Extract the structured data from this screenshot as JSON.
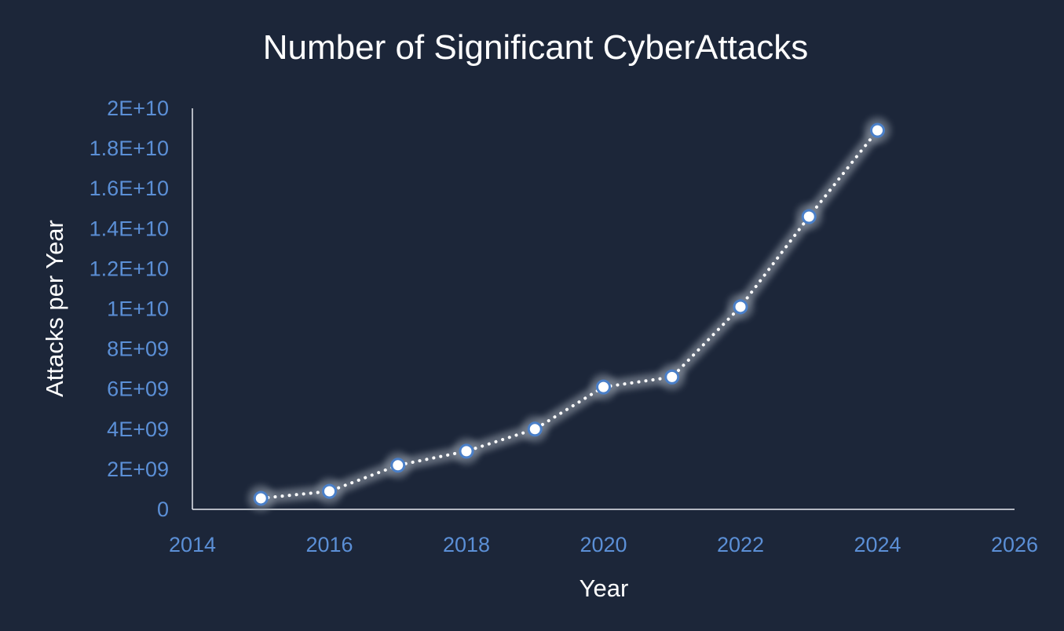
{
  "chart_data": {
    "type": "scatter",
    "title": "Number of Significant CyberAttacks",
    "xlabel": "Year",
    "ylabel": "Attacks per Year",
    "xlim": [
      2014,
      2026
    ],
    "ylim": [
      0,
      20000000000
    ],
    "x_ticks": [
      2014,
      2016,
      2018,
      2020,
      2022,
      2024,
      2026
    ],
    "x_tick_labels": [
      "2014",
      "2016",
      "2018",
      "2020",
      "2022",
      "2024",
      "2026"
    ],
    "y_ticks": [
      0,
      2000000000,
      4000000000,
      6000000000,
      8000000000,
      10000000000,
      12000000000,
      14000000000,
      16000000000,
      18000000000,
      20000000000
    ],
    "y_tick_labels": [
      "0",
      "2E+09",
      "4E+09",
      "6E+09",
      "8E+09",
      "1E+10",
      "1.2E+10",
      "1.4E+10",
      "1.6E+10",
      "1.8E+10",
      "2E+10"
    ],
    "grid": false,
    "series": [
      {
        "name": "Attacks per Year",
        "style": "dotted line with markers",
        "x": [
          2015,
          2016,
          2017,
          2018,
          2019,
          2020,
          2021,
          2022,
          2023,
          2024
        ],
        "y": [
          550000000,
          900000000,
          2200000000,
          2900000000,
          4000000000,
          6100000000,
          6600000000,
          10100000000,
          14600000000,
          18900000000
        ]
      }
    ],
    "colors": {
      "background": "#1c2639",
      "tick_label": "#5b8fd6",
      "text": "#ffffff",
      "axis": "#e6e9ef",
      "line": "#ffffff",
      "marker_edge": "#4a7fc8",
      "glow": "#9aa2ae"
    }
  }
}
